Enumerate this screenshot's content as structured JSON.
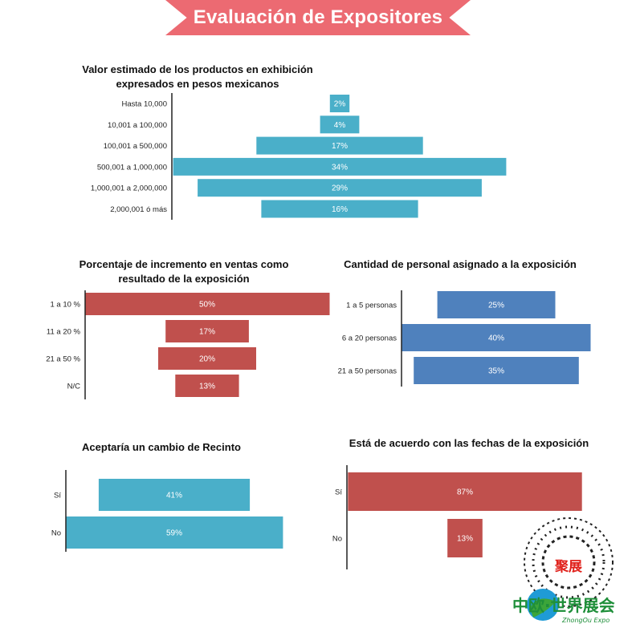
{
  "banner": {
    "title": "Evaluación de Expositores"
  },
  "colors": {
    "banner": "#ec6a72",
    "teal": "#4aafc9",
    "red": "#c0504d",
    "blue": "#4f81bd"
  },
  "chart_data": [
    {
      "id": "valor",
      "type": "bar",
      "orientation": "horizontal-centered",
      "title_lines": [
        "Valor estimado de los productos  en exhibición",
        "expresados en pesos mexicanos"
      ],
      "categories": [
        "Hasta 10,000",
        "10,001 a 100,000",
        "100,001 a 500,000",
        "500,001 a 1,000,000",
        "1,000,001 a 2,000,000",
        "2,000,001 ó más"
      ],
      "values": [
        2,
        4,
        17,
        34,
        29,
        16
      ],
      "labels": [
        "2%",
        "4%",
        "17%",
        "34%",
        "29%",
        "16%"
      ],
      "unit": "%",
      "color": "#4aafc9"
    },
    {
      "id": "incremento",
      "type": "bar",
      "orientation": "horizontal-centered",
      "title_lines": [
        "Porcentaje  de incremento en ventas como",
        "resultado de la exposición"
      ],
      "categories": [
        "1 a 10 %",
        "11 a 20 %",
        "21 a 50 %",
        "N/C"
      ],
      "values": [
        50,
        17,
        20,
        13
      ],
      "labels": [
        "50%",
        "17%",
        "20%",
        "13%"
      ],
      "unit": "%",
      "color": "#c0504d"
    },
    {
      "id": "personal",
      "type": "bar",
      "orientation": "horizontal-centered",
      "title_lines": [
        "Cantidad de personal asignado a la exposición"
      ],
      "categories": [
        "1 a 5 personas",
        "6 a 20 personas",
        "21 a 50 personas"
      ],
      "values": [
        25,
        40,
        35
      ],
      "labels": [
        "25%",
        "40%",
        "35%"
      ],
      "unit": "%",
      "color": "#4f81bd"
    },
    {
      "id": "recinto",
      "type": "bar",
      "orientation": "horizontal-centered",
      "title_lines": [
        "Aceptaría un cambio de Recinto"
      ],
      "categories": [
        "Sí",
        "No"
      ],
      "values": [
        41,
        59
      ],
      "labels": [
        "41%",
        "59%"
      ],
      "unit": "%",
      "color": "#4aafc9"
    },
    {
      "id": "fechas",
      "type": "bar",
      "orientation": "horizontal-centered",
      "title_lines": [
        "Está de acuerdo con las fechas de la exposición"
      ],
      "categories": [
        "Sí",
        "No"
      ],
      "values": [
        87,
        13
      ],
      "labels": [
        "87%",
        "13%"
      ],
      "unit": "%",
      "color": "#c0504d"
    }
  ],
  "watermark": {
    "stamp_text": "聚展",
    "logo_text": "中欧·世界展会",
    "logo_subtext": "ZhongOu Expo"
  }
}
